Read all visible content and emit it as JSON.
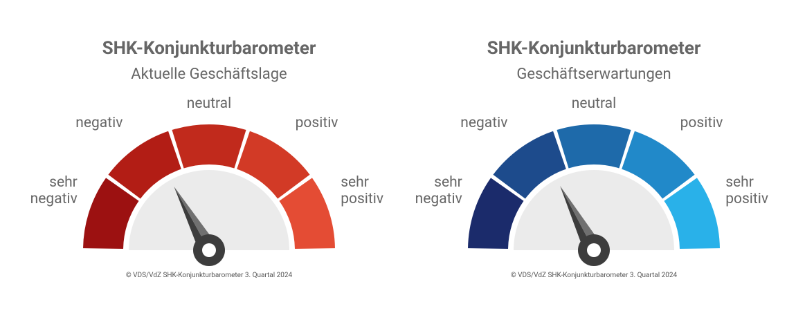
{
  "chart_data": [
    {
      "type": "gauge",
      "title": "SHK-Konjunkturbarometer",
      "subtitle": "Aktuelle Geschäftslage",
      "categories": [
        "sehr negativ",
        "negativ",
        "neutral",
        "positiv",
        "sehr positiv"
      ],
      "colors": [
        "#9c1111",
        "#b21d15",
        "#c12a1c",
        "#d23a26",
        "#e44c34"
      ],
      "value": 1.7,
      "ylim": [
        0,
        5
      ],
      "source": "© VDS/VdZ SHK-Konjunkturbarometer 3. Quartal 2024"
    },
    {
      "type": "gauge",
      "title": "SHK-Konjunkturbarometer",
      "subtitle": "Geschäftserwartungen",
      "categories": [
        "sehr negativ",
        "negativ",
        "neutral",
        "positiv",
        "sehr positiv"
      ],
      "colors": [
        "#1b2b6b",
        "#1d4b8c",
        "#1e6aaa",
        "#2189c9",
        "#29b1e9"
      ],
      "value": 1.73,
      "ylim": [
        0,
        5
      ],
      "source": "© VDS/VdZ SHK-Konjunkturbarometer 3. Quartal 2024"
    }
  ]
}
